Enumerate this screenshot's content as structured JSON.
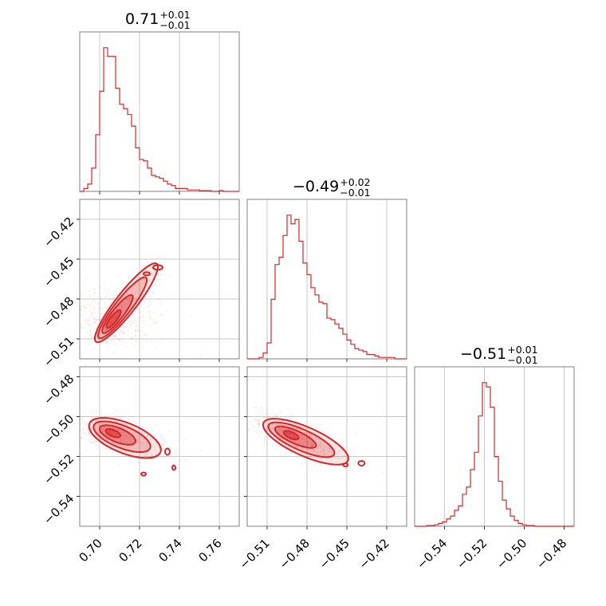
{
  "chart_data": {
    "type": "corner",
    "color": "#d62728",
    "params": [
      {
        "title": "0.71",
        "plus": "+0.01",
        "minus": "−0.01",
        "range": [
          0.69,
          0.77
        ],
        "ticks": [
          0.7,
          0.72,
          0.74,
          0.76
        ],
        "tick_labels": [
          "0.70",
          "0.72",
          "0.74",
          "0.76"
        ],
        "hist": [
          0.0,
          0.02,
          0.05,
          0.16,
          0.39,
          0.69,
          0.99,
          0.93,
          0.93,
          0.71,
          0.6,
          0.57,
          0.53,
          0.45,
          0.3,
          0.22,
          0.21,
          0.16,
          0.11,
          0.1,
          0.09,
          0.07,
          0.05,
          0.04,
          0.02,
          0.02,
          0.02,
          0.01,
          0.01,
          0.01,
          0.005,
          0.005,
          0.005,
          0.0,
          0.0,
          0.005,
          0.0,
          0.0,
          0.0,
          0.0
        ]
      },
      {
        "title": "−0.49",
        "plus": "+0.02",
        "minus": "−0.01",
        "range": [
          -0.525,
          -0.405
        ],
        "ticks": [
          -0.51,
          -0.48,
          -0.45,
          -0.42
        ],
        "tick_labels": [
          "−0.51",
          "−0.48",
          "−0.45",
          "−0.42"
        ],
        "hist": [
          0.0,
          0.0,
          0.0,
          0.01,
          0.04,
          0.11,
          0.41,
          0.65,
          0.7,
          0.85,
          0.99,
          0.93,
          0.96,
          0.81,
          0.66,
          0.58,
          0.49,
          0.44,
          0.39,
          0.38,
          0.28,
          0.27,
          0.24,
          0.21,
          0.17,
          0.13,
          0.1,
          0.07,
          0.06,
          0.05,
          0.03,
          0.03,
          0.02,
          0.01,
          0.01,
          0.01,
          0.01,
          0.0,
          0.0,
          0.0
        ]
      },
      {
        "title": "−0.51",
        "plus": "+0.01",
        "minus": "−0.01",
        "range": [
          -0.555,
          -0.475
        ],
        "ticks": [
          -0.54,
          -0.52,
          -0.5,
          -0.48
        ],
        "tick_labels": [
          "−0.54",
          "−0.52",
          "−0.50",
          "−0.48"
        ],
        "hist": [
          0.0,
          0.0,
          0.0,
          0.005,
          0.005,
          0.01,
          0.02,
          0.03,
          0.05,
          0.07,
          0.11,
          0.14,
          0.22,
          0.27,
          0.39,
          0.51,
          0.76,
          0.99,
          0.96,
          0.82,
          0.48,
          0.31,
          0.18,
          0.12,
          0.07,
          0.04,
          0.02,
          0.01,
          0.005,
          0.005,
          0.0,
          0.0,
          0.0,
          0.0,
          0.0,
          0.0,
          0.0,
          0.0,
          0.0,
          0.0
        ]
      }
    ],
    "pairs": [
      {
        "row": 1,
        "col": 0,
        "center": [
          0.706,
          -0.497
        ],
        "slope": 2.2,
        "sd_major": 0.0085,
        "sd_minor": 0.0033,
        "skew": 1.6
      },
      {
        "row": 2,
        "col": 0,
        "center": [
          0.706,
          -0.508
        ],
        "slope": -0.35,
        "sd_major": 0.0085,
        "sd_minor": 0.0035,
        "skew": 1.6
      },
      {
        "row": 2,
        "col": 1,
        "center": [
          -0.493,
          -0.509
        ],
        "slope": -0.3,
        "sd_major": 0.014,
        "sd_minor": 0.0035,
        "skew": 1.6
      }
    ],
    "grid": true
  }
}
